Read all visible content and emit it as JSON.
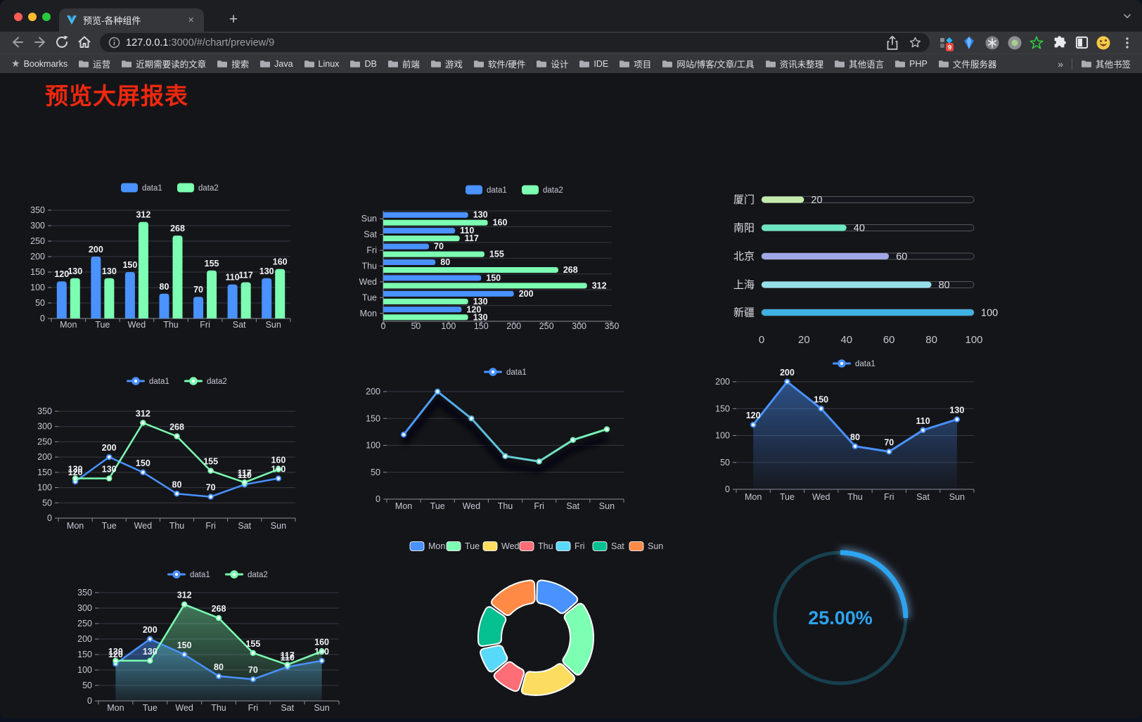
{
  "browser": {
    "tab_title": "预览-各种组件",
    "tab_close_glyph": "×",
    "new_tab_label": "+",
    "url_host": "127.0.0.1",
    "url_path": ":3000/#/chart/preview/9",
    "bookmarks_label": "Bookmarks",
    "bookmarks": [
      "运营",
      "近期需要读的文章",
      "搜索",
      "Java",
      "Linux",
      "DB",
      "前端",
      "游戏",
      "软件/硬件",
      "设计",
      "IDE",
      "项目",
      "网站/博客/文章/工具",
      "资讯未整理",
      "其他语言",
      "PHP",
      "文件服务器"
    ],
    "bookmarks_overflow": "»",
    "other_bookmarks": "其他书签",
    "extension_badge": "9"
  },
  "page": {
    "title": "预览大屏报表",
    "title_color": "#f0280e"
  },
  "chart_data": [
    {
      "id": "bar",
      "type": "bar",
      "categories": [
        "Mon",
        "Tue",
        "Wed",
        "Thu",
        "Fri",
        "Sat",
        "Sun"
      ],
      "series": [
        {
          "name": "data1",
          "color": "#4992ff",
          "values": [
            120,
            200,
            150,
            80,
            70,
            110,
            130
          ]
        },
        {
          "name": "data2",
          "color": "#7cffb2",
          "values": [
            130,
            130,
            312,
            268,
            155,
            117,
            160
          ]
        }
      ],
      "ylim": [
        0,
        350
      ],
      "yticks": [
        0,
        50,
        100,
        150,
        200,
        250,
        300,
        350
      ],
      "legend_position": "top",
      "grid": true
    },
    {
      "id": "hbar",
      "type": "bar-horizontal",
      "categories": [
        "Mon",
        "Tue",
        "Wed",
        "Thu",
        "Fri",
        "Sat",
        "Sun"
      ],
      "series": [
        {
          "name": "data1",
          "color": "#4992ff",
          "values": [
            120,
            200,
            150,
            80,
            70,
            110,
            130
          ]
        },
        {
          "name": "data2",
          "color": "#7cffb2",
          "values": [
            130,
            130,
            312,
            268,
            155,
            117,
            160
          ]
        }
      ],
      "xlim": [
        0,
        350
      ],
      "xticks": [
        0,
        50,
        100,
        150,
        200,
        250,
        300,
        350
      ],
      "legend_position": "top",
      "grid": true
    },
    {
      "id": "prog",
      "type": "progress",
      "items": [
        {
          "label": "厦门",
          "value": 20,
          "color": "#c4ebad"
        },
        {
          "label": "南阳",
          "value": 40,
          "color": "#6be6c1"
        },
        {
          "label": "北京",
          "value": 60,
          "color": "#a0a7e6"
        },
        {
          "label": "上海",
          "value": 80,
          "color": "#96dee8"
        },
        {
          "label": "新疆",
          "value": 100,
          "color": "#3fb1e3"
        }
      ],
      "max": 100,
      "xticks": [
        0,
        20,
        40,
        60,
        80,
        100
      ]
    },
    {
      "id": "line",
      "type": "line",
      "categories": [
        "Mon",
        "Tue",
        "Wed",
        "Thu",
        "Fri",
        "Sat",
        "Sun"
      ],
      "series": [
        {
          "name": "data1",
          "color": "#4992ff",
          "values": [
            120,
            200,
            150,
            80,
            70,
            110,
            130
          ]
        },
        {
          "name": "data2",
          "color": "#7cffb2",
          "values": [
            130,
            130,
            312,
            268,
            155,
            117,
            160
          ]
        }
      ],
      "ylim": [
        0,
        350
      ],
      "yticks": [
        0,
        50,
        100,
        150,
        200,
        250,
        300,
        350
      ],
      "show_labels": true,
      "legend_position": "top"
    },
    {
      "id": "gline",
      "type": "line",
      "categories": [
        "Mon",
        "Tue",
        "Wed",
        "Thu",
        "Fri",
        "Sat",
        "Sun"
      ],
      "series": [
        {
          "name": "data1",
          "gradient": [
            "#4992ff",
            "#7cffb2"
          ],
          "values": [
            120,
            200,
            150,
            80,
            70,
            110,
            130
          ]
        }
      ],
      "ylim": [
        0,
        200
      ],
      "yticks": [
        0,
        50,
        100,
        150,
        200
      ],
      "show_labels": false,
      "legend_position": "top"
    },
    {
      "id": "area1",
      "type": "area",
      "categories": [
        "Mon",
        "Tue",
        "Wed",
        "Thu",
        "Fri",
        "Sat",
        "Sun"
      ],
      "series": [
        {
          "name": "data1",
          "color": "#4992ff",
          "values": [
            120,
            200,
            150,
            80,
            70,
            110,
            130
          ]
        }
      ],
      "ylim": [
        0,
        200
      ],
      "yticks": [
        0,
        50,
        100,
        150,
        200
      ],
      "show_labels": true,
      "legend_position": "top"
    },
    {
      "id": "area2",
      "type": "area",
      "categories": [
        "Mon",
        "Tue",
        "Wed",
        "Thu",
        "Fri",
        "Sat",
        "Sun"
      ],
      "series": [
        {
          "name": "data1",
          "color": "#4992ff",
          "values": [
            120,
            200,
            150,
            80,
            70,
            110,
            130
          ]
        },
        {
          "name": "data2",
          "color": "#7cffb2",
          "values": [
            130,
            130,
            312,
            268,
            155,
            117,
            160
          ]
        }
      ],
      "ylim": [
        0,
        350
      ],
      "yticks": [
        0,
        50,
        100,
        150,
        200,
        250,
        300,
        350
      ],
      "show_labels": true,
      "legend_position": "top"
    },
    {
      "id": "pie",
      "type": "pie",
      "items": [
        {
          "label": "Mon",
          "value": 120,
          "color": "#4992ff"
        },
        {
          "label": "Tue",
          "value": 200,
          "color": "#7cffb2"
        },
        {
          "label": "Wed",
          "value": 150,
          "color": "#fddd60"
        },
        {
          "label": "Thu",
          "value": 80,
          "color": "#ff6e76"
        },
        {
          "label": "Fri",
          "value": 70,
          "color": "#58d9f9"
        },
        {
          "label": "Sat",
          "value": 110,
          "color": "#05c091"
        },
        {
          "label": "Sun",
          "value": 130,
          "color": "#ff8a45"
        }
      ],
      "legend_position": "top"
    },
    {
      "id": "gauge",
      "type": "gauge",
      "value": 25,
      "max": 100,
      "label": "25.00%",
      "color": "#2da4f0",
      "track_color": "#17404e"
    }
  ]
}
